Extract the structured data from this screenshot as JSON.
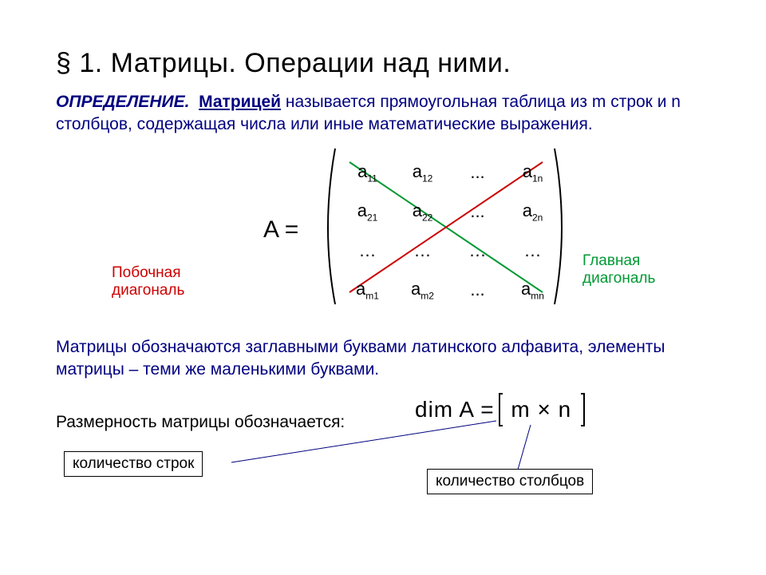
{
  "title": "§ 1. Матрицы. Операции над ними.",
  "definition": {
    "lead": "ОПРЕДЕЛЕНИЕ.",
    "term": "Матрицей",
    "rest": " называется прямоугольная таблица из m строк и n столбцов, содержащая числа или иные математические выражения."
  },
  "matrix": {
    "label": "A =",
    "cells": [
      [
        "a",
        "11",
        "a",
        "12",
        "...",
        "a",
        "1n"
      ],
      [
        "a",
        "21",
        "a",
        "22",
        "...",
        "a",
        "2n"
      ],
      [
        "…",
        "",
        "…",
        "",
        "…",
        "…",
        ""
      ],
      [
        "a",
        "m1",
        "a",
        "m2",
        "...",
        "a",
        "mn"
      ]
    ],
    "paren_color": "#000000",
    "main_diag_color": "#009933",
    "anti_diag_color": "#cc0000",
    "line_width": 2
  },
  "captions": {
    "secondary": "Побочная диагональ",
    "main": "Главная диагональ"
  },
  "note": "Матрицы обозначаются заглавными буквами латинского алфавита, элементы матрицы – теми же маленькими буквами.",
  "dimension": {
    "text": "Размерность матрицы обозначается:",
    "formula_prefix": "dim A  =",
    "formula_body": "m × n",
    "rows_box": "количество строк",
    "cols_box": "количество столбцов",
    "bracket_color": "#000000",
    "arrow_color": "#000080"
  },
  "colors": {
    "text_blue": "#000080",
    "text_black": "#000000",
    "bg": "#ffffff"
  }
}
